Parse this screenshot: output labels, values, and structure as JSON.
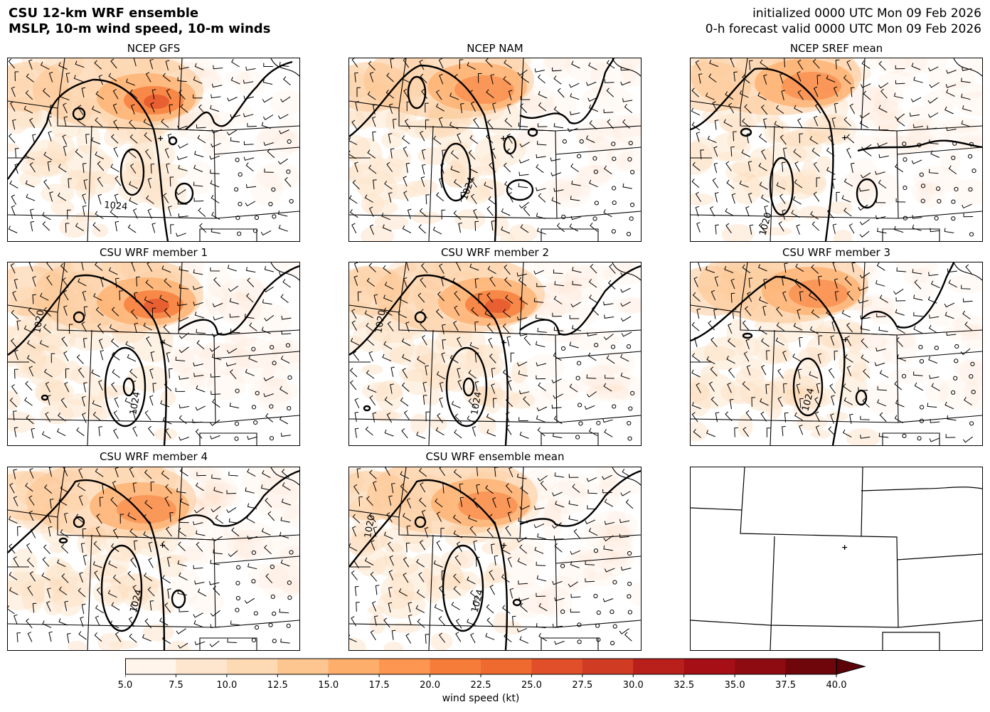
{
  "header": {
    "title_line1": "CSU 12-km WRF ensemble",
    "title_line2": "MSLP, 10-m wind speed, 10-m winds",
    "init_line": "initialized 0000 UTC Mon 09 Feb 2026",
    "valid_line": "0-h forecast valid 0000 UTC Mon 09 Feb 2026"
  },
  "panels": [
    {
      "title": "NCEP GFS",
      "contour_labels": [
        "1024"
      ]
    },
    {
      "title": "NCEP NAM",
      "contour_labels": [
        "1024"
      ]
    },
    {
      "title": "NCEP SREF mean",
      "contour_labels": [
        "1020"
      ]
    },
    {
      "title": "CSU WRF member 1",
      "contour_labels": [
        "1020",
        "1024"
      ]
    },
    {
      "title": "CSU WRF member 2",
      "contour_labels": [
        "1020",
        "1024"
      ]
    },
    {
      "title": "CSU WRF member 3",
      "contour_labels": [
        "1024"
      ]
    },
    {
      "title": "CSU WRF member 4",
      "contour_labels": [
        "1024"
      ]
    },
    {
      "title": "CSU WRF ensemble mean",
      "contour_labels": [
        "1020",
        "1024"
      ]
    },
    {
      "title": "",
      "contour_labels": []
    }
  ],
  "colorbar": {
    "label": "wind speed (kt)",
    "ticks": [
      "5.0",
      "7.5",
      "10.0",
      "12.5",
      "15.0",
      "17.5",
      "20.0",
      "22.5",
      "25.0",
      "27.5",
      "30.0",
      "32.5",
      "35.0",
      "37.5",
      "40.0"
    ],
    "colors": [
      "#fff5eb",
      "#fee8d3",
      "#fdd9b4",
      "#fdc28c",
      "#fda762",
      "#fb8d3d",
      "#f2701d",
      "#e25609",
      "#c44103",
      "#9f3303",
      "#7f2704",
      "#ef6548",
      "#d7301f",
      "#b30000",
      "#7f0000"
    ],
    "extend": "max"
  }
}
